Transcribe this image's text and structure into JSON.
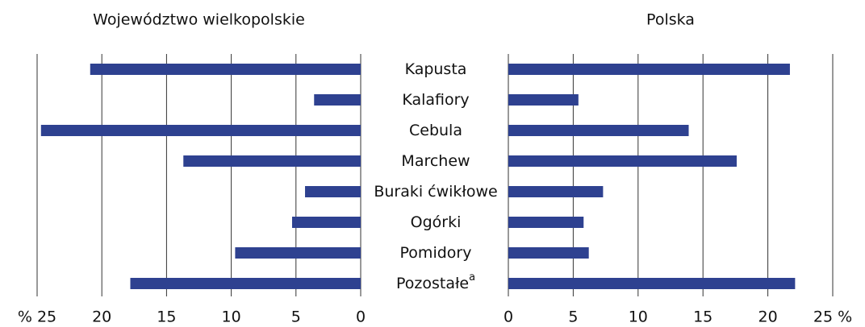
{
  "chart_data": [
    {
      "type": "bar",
      "title": "Województwo wielkopolskie",
      "categories": [
        "Kapusta",
        "Kalafiory",
        "Cebula",
        "Marchew",
        "Buraki ćwikłowe",
        "Ogórki",
        "Pomidory",
        "Pozostałe"
      ],
      "footnotes": [
        {
          "category": 7,
          "mark": "a"
        }
      ],
      "values": [
        20.9,
        3.6,
        24.7,
        13.7,
        4.3,
        5.3,
        9.7,
        17.8
      ],
      "color": "#2e4190",
      "x_reversed": true,
      "grid": true,
      "xlim": [
        0,
        25
      ],
      "xticks": [
        {
          "value": 25,
          "label": "% 25"
        },
        20,
        15,
        10,
        5,
        0
      ]
    },
    {
      "type": "bar",
      "title": "Polska",
      "values": [
        21.7,
        5.4,
        13.9,
        17.6,
        7.3,
        5.8,
        6.2,
        22.1
      ],
      "color": "#2e4190",
      "x_reversed": false,
      "grid": true,
      "xlim": [
        0,
        25
      ],
      "xticks": [
        0,
        5,
        10,
        15,
        20,
        {
          "value": 25,
          "label": "25 %"
        }
      ]
    }
  ]
}
